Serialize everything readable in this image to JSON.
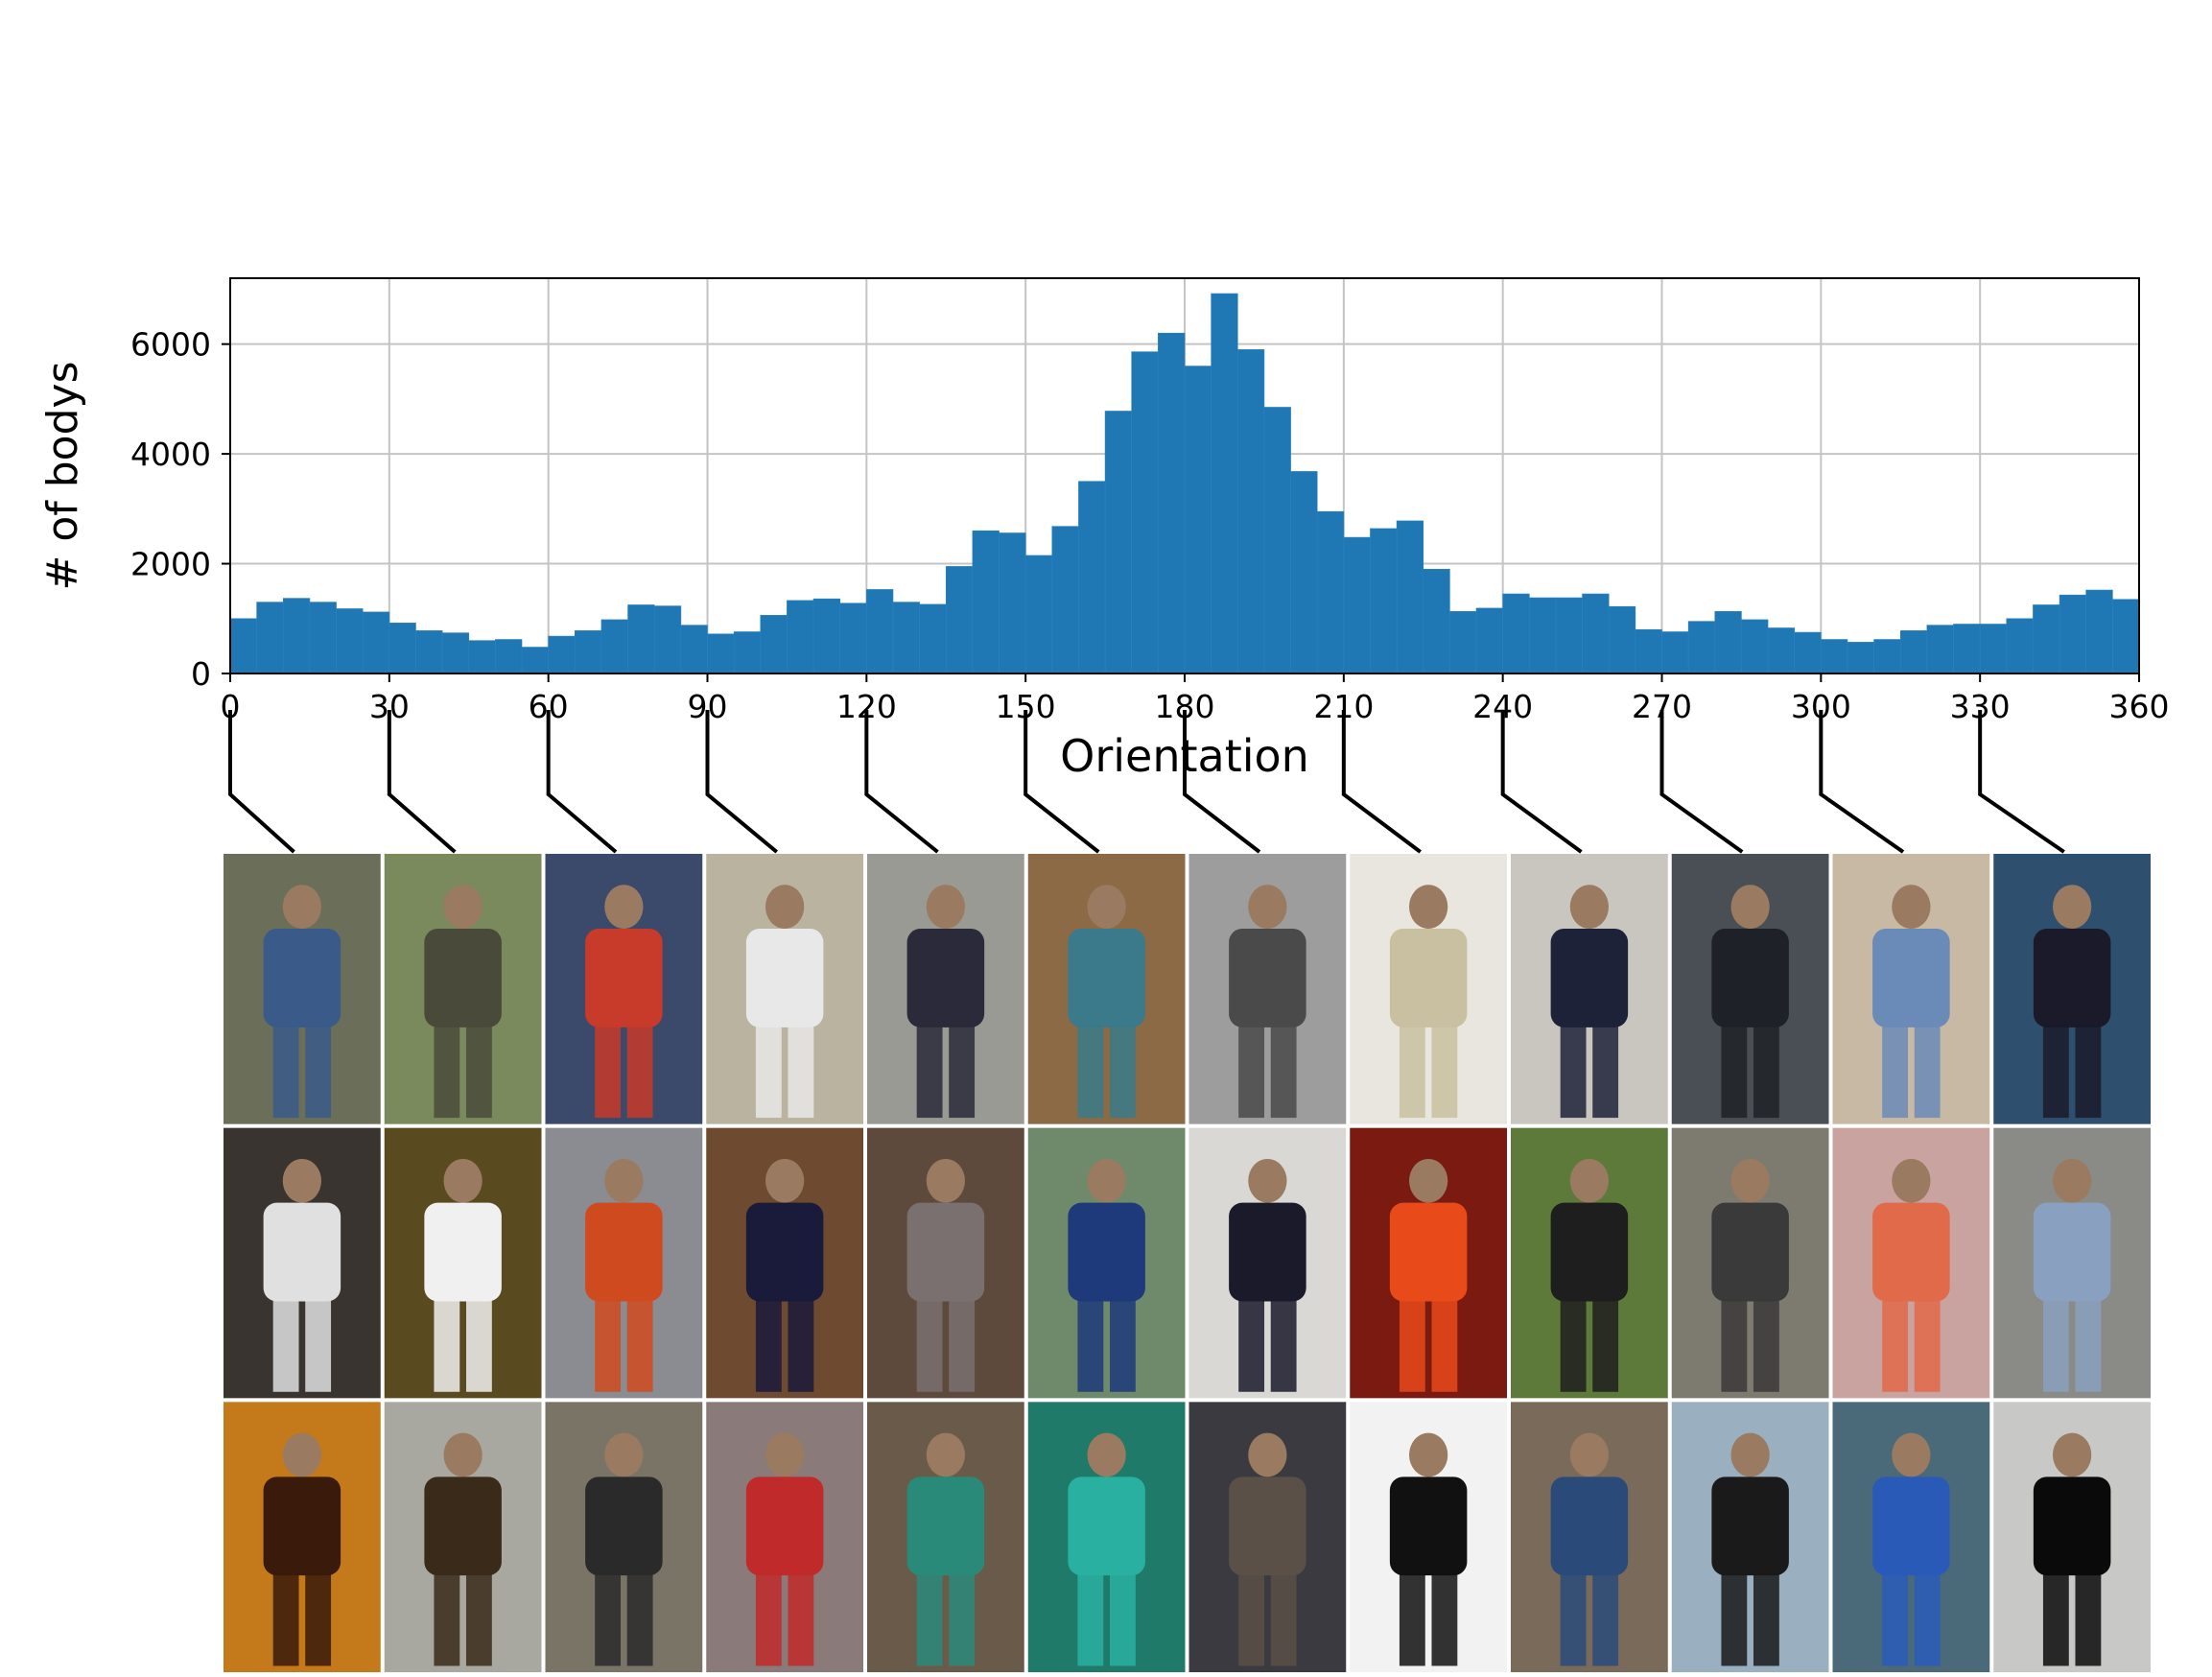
{
  "chart_data": {
    "type": "bar",
    "title": "",
    "xlabel": "Orientation",
    "ylabel": "# of bodys",
    "xlim": [
      0,
      360
    ],
    "ylim": [
      0,
      7200
    ],
    "grid": true,
    "bin_width": 5,
    "x_ticks": [
      0,
      30,
      60,
      90,
      120,
      150,
      180,
      210,
      240,
      270,
      300,
      330,
      360
    ],
    "y_ticks": [
      0,
      2000,
      4000,
      6000
    ],
    "bar_color": "#1f77b4",
    "values": [
      1000,
      1300,
      1370,
      1300,
      1180,
      1120,
      920,
      780,
      740,
      600,
      620,
      480,
      680,
      780,
      980,
      1250,
      1230,
      880,
      720,
      760,
      1060,
      1330,
      1360,
      1280,
      1530,
      1300,
      1260,
      1950,
      2600,
      2560,
      2150,
      2680,
      3500,
      4780,
      5860,
      6200,
      5600,
      6920,
      5900,
      4850,
      3680,
      2950,
      2480,
      2640,
      2780,
      1900,
      1130,
      1190,
      1450,
      1380,
      1380,
      1450,
      1220,
      800,
      760,
      950,
      1130,
      980,
      830,
      750,
      620,
      570,
      620,
      780,
      880,
      900,
      900,
      1000,
      1250,
      1430,
      1520,
      1350
    ]
  },
  "sample_grid": {
    "columns_at_orientation": [
      0,
      30,
      60,
      90,
      120,
      150,
      180,
      210,
      240,
      270,
      300,
      330
    ],
    "rows": 3
  }
}
